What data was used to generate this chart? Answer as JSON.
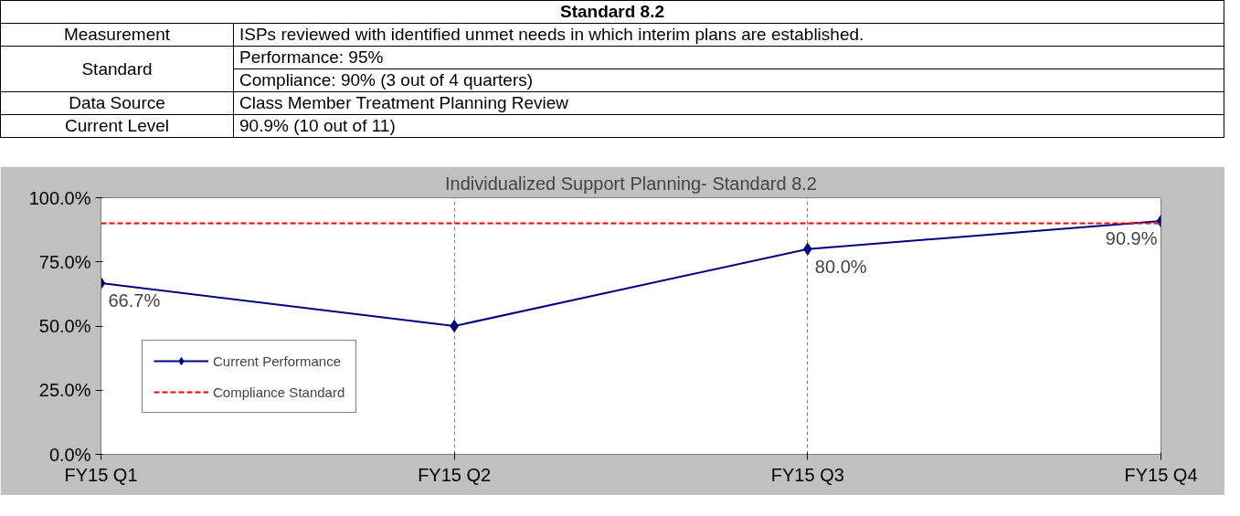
{
  "chart_data": {
    "type": "line",
    "title": "Individualized Support Planning- Standard 8.2",
    "annotations": [
      "Standard 8.2",
      "Measurement",
      "ISPs reviewed with identified unmet needs in which interim plans are established.",
      "Standard",
      "Performance: 95%",
      "Compliance: 90% (3 out of 4 quarters)",
      "Data Source",
      "Class Member Treatment Planning Review",
      "Current Level",
      "90.9% (10 out of 11)"
    ],
    "categories": [
      "FY15 Q1",
      "FY15 Q2",
      "FY15 Q3",
      "FY15 Q4"
    ],
    "series": [
      {
        "name": "Current Performance",
        "color": "#000080",
        "values": [
          66.7,
          50.0,
          80.0,
          90.9
        ],
        "marker": "diamond",
        "line_style": "solid",
        "value_labels": [
          "66.7%",
          null,
          "80.0%",
          "90.9%"
        ]
      },
      {
        "name": "Compliance Standard",
        "color": "#ff0000",
        "values": [
          90,
          90,
          90,
          90
        ],
        "marker": "none",
        "line_style": "dashed"
      }
    ],
    "ylim": [
      0,
      100
    ],
    "yticks": [
      {
        "value": 0,
        "label": "0.0%"
      },
      {
        "value": 25,
        "label": "25.0%"
      },
      {
        "value": 50,
        "label": "50.0%"
      },
      {
        "value": 75,
        "label": "75.0%"
      },
      {
        "value": 100,
        "label": "100.0%"
      }
    ],
    "grid": "x",
    "legend": "bottom left"
  }
}
